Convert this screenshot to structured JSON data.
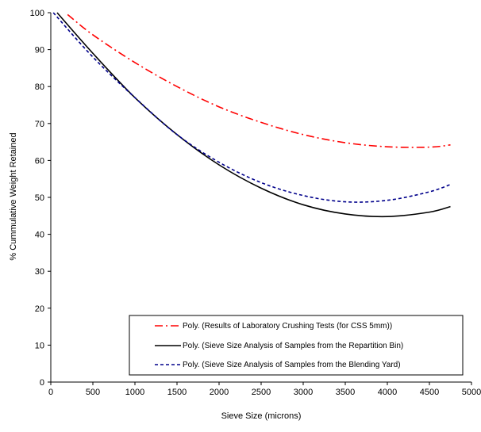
{
  "chart_data": {
    "type": "line",
    "title": "",
    "xlabel": "Sieve Size (microns)",
    "ylabel": "% Cummulative Weight Retained",
    "xlim": [
      0,
      5000
    ],
    "ylim": [
      0,
      100
    ],
    "x_ticks": [
      "0",
      "500",
      "1000",
      "1500",
      "2000",
      "2500",
      "3000",
      "3500",
      "4000",
      "4500",
      "5000"
    ],
    "y_ticks": [
      "0",
      "10",
      "20",
      "30",
      "40",
      "50",
      "60",
      "70",
      "80",
      "90",
      "100"
    ],
    "grid": false,
    "legend_position": "bottom-right",
    "series": [
      {
        "name": "Poly. (Results of Laboratory Crushing Tests  (for CSS 5mm))",
        "color": "#ff0000",
        "dash": "dash-dot",
        "x": [
          200,
          500,
          1000,
          1500,
          2000,
          2500,
          3000,
          3500,
          4000,
          4500,
          4750
        ],
        "y": [
          99.5,
          94,
          86.5,
          80,
          74.5,
          70.3,
          67,
          64.8,
          63.7,
          63.6,
          64.2
        ]
      },
      {
        "name": "Poly. (Sieve Size Analysis of Samples from the Repartition Bin)",
        "color": "#000000",
        "dash": "solid",
        "x": [
          75,
          500,
          1000,
          1500,
          2000,
          2500,
          3000,
          3500,
          4000,
          4500,
          4750
        ],
        "y": [
          100,
          89,
          77,
          67,
          58.8,
          52.5,
          48,
          45.5,
          44.8,
          46,
          47.5
        ]
      },
      {
        "name": "Poly. (Sieve Size Analysis of Samples from the Blending Yard)",
        "color": "#00008b",
        "dash": "dashed",
        "x": [
          30,
          500,
          1000,
          1500,
          2000,
          2500,
          3000,
          3500,
          4000,
          4500,
          4750
        ],
        "y": [
          100,
          88,
          77,
          67,
          59.5,
          54,
          50.5,
          48.8,
          49.2,
          51.5,
          53.5
        ]
      }
    ]
  }
}
